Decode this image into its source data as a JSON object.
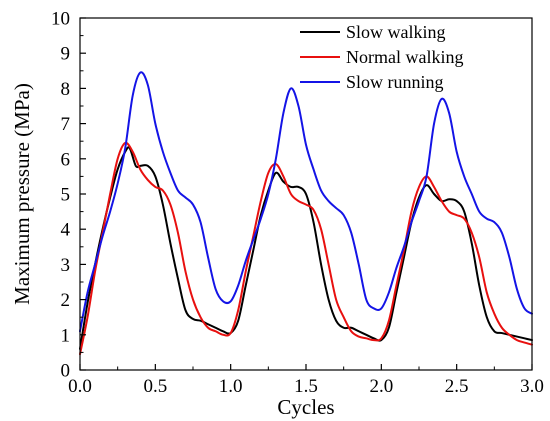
{
  "chart_data": {
    "type": "line",
    "title": "",
    "xlabel": "Cycles",
    "ylabel": "Maximum pressure (MPa)",
    "xlim": [
      0.0,
      3.0
    ],
    "ylim": [
      0,
      10
    ],
    "xticks": [
      0.0,
      0.5,
      1.0,
      1.5,
      2.0,
      2.5,
      3.0
    ],
    "xtick_labels": [
      "0.0",
      "0.5",
      "1.0",
      "1.5",
      "2.0",
      "2.5",
      "3.0"
    ],
    "yticks": [
      0,
      1,
      2,
      3,
      4,
      5,
      6,
      7,
      8,
      9,
      10
    ],
    "ytick_labels": [
      "0",
      "1",
      "2",
      "3",
      "4",
      "5",
      "6",
      "7",
      "8",
      "9",
      "10"
    ],
    "grid": false,
    "legend_position": "top-right",
    "series": [
      {
        "name": "Slow walking",
        "color": "#000000",
        "x": [
          0.0,
          0.05,
          0.1,
          0.15,
          0.2,
          0.25,
          0.3,
          0.33,
          0.37,
          0.4,
          0.45,
          0.5,
          0.55,
          0.6,
          0.65,
          0.7,
          0.75,
          0.8,
          0.85,
          0.9,
          0.95,
          1.0,
          1.05,
          1.1,
          1.15,
          1.2,
          1.25,
          1.3,
          1.35,
          1.4,
          1.45,
          1.5,
          1.55,
          1.6,
          1.65,
          1.7,
          1.75,
          1.8,
          1.85,
          1.9,
          1.95,
          2.0,
          2.05,
          2.1,
          2.15,
          2.2,
          2.25,
          2.3,
          2.35,
          2.4,
          2.45,
          2.5,
          2.55,
          2.6,
          2.65,
          2.7,
          2.75,
          2.8,
          2.85,
          2.9,
          2.95,
          3.0
        ],
        "y": [
          0.6,
          1.9,
          3.0,
          4.0,
          4.9,
          5.7,
          6.2,
          6.3,
          5.8,
          5.8,
          5.8,
          5.5,
          4.7,
          3.6,
          2.6,
          1.7,
          1.45,
          1.4,
          1.3,
          1.2,
          1.1,
          1.05,
          1.4,
          2.4,
          3.4,
          4.4,
          5.1,
          5.6,
          5.35,
          5.2,
          5.2,
          5.0,
          4.2,
          3.0,
          2.0,
          1.4,
          1.2,
          1.2,
          1.1,
          1.0,
          0.9,
          0.85,
          1.2,
          2.2,
          3.2,
          4.2,
          4.9,
          5.25,
          5.0,
          4.8,
          4.85,
          4.8,
          4.5,
          3.6,
          2.4,
          1.5,
          1.1,
          1.05,
          1.0,
          0.95,
          0.9,
          0.85
        ]
      },
      {
        "name": "Normal walking",
        "color": "#e8100f",
        "x": [
          0.0,
          0.05,
          0.1,
          0.15,
          0.2,
          0.25,
          0.3,
          0.35,
          0.4,
          0.45,
          0.5,
          0.55,
          0.6,
          0.65,
          0.7,
          0.75,
          0.8,
          0.85,
          0.9,
          0.95,
          1.0,
          1.05,
          1.1,
          1.15,
          1.2,
          1.25,
          1.3,
          1.35,
          1.4,
          1.45,
          1.5,
          1.55,
          1.6,
          1.65,
          1.7,
          1.75,
          1.8,
          1.85,
          1.9,
          1.95,
          2.0,
          2.05,
          2.1,
          2.15,
          2.2,
          2.25,
          2.3,
          2.35,
          2.4,
          2.45,
          2.5,
          2.55,
          2.6,
          2.65,
          2.7,
          2.75,
          2.8,
          2.85,
          2.9,
          2.95,
          3.0
        ],
        "y": [
          0.45,
          1.5,
          2.8,
          3.9,
          5.0,
          6.0,
          6.45,
          6.2,
          5.7,
          5.4,
          5.2,
          5.1,
          4.7,
          3.9,
          2.8,
          2.0,
          1.5,
          1.2,
          1.1,
          1.0,
          1.05,
          1.7,
          2.8,
          3.8,
          4.8,
          5.6,
          5.85,
          5.5,
          5.0,
          4.8,
          4.7,
          4.55,
          4.0,
          3.0,
          2.0,
          1.5,
          1.1,
          0.95,
          0.9,
          0.85,
          0.9,
          1.4,
          2.4,
          3.4,
          4.5,
          5.2,
          5.5,
          5.2,
          4.8,
          4.5,
          4.4,
          4.3,
          3.9,
          3.2,
          2.2,
          1.6,
          1.2,
          1.0,
          0.85,
          0.78,
          0.72
        ]
      },
      {
        "name": "Slow running",
        "color": "#1414e6",
        "x": [
          0.0,
          0.05,
          0.1,
          0.15,
          0.2,
          0.25,
          0.3,
          0.35,
          0.4,
          0.45,
          0.5,
          0.55,
          0.6,
          0.65,
          0.7,
          0.75,
          0.8,
          0.85,
          0.9,
          0.95,
          1.0,
          1.05,
          1.1,
          1.15,
          1.2,
          1.25,
          1.3,
          1.35,
          1.4,
          1.45,
          1.5,
          1.55,
          1.6,
          1.65,
          1.7,
          1.75,
          1.8,
          1.85,
          1.9,
          1.95,
          2.0,
          2.05,
          2.1,
          2.15,
          2.2,
          2.25,
          2.3,
          2.35,
          2.4,
          2.45,
          2.5,
          2.55,
          2.6,
          2.65,
          2.7,
          2.75,
          2.8,
          2.85,
          2.9,
          2.95,
          3.0
        ],
        "y": [
          1.1,
          2.2,
          3.0,
          3.8,
          4.5,
          5.3,
          6.3,
          7.8,
          8.45,
          8.1,
          7.0,
          6.2,
          5.6,
          5.1,
          4.9,
          4.7,
          4.2,
          3.2,
          2.3,
          1.95,
          1.95,
          2.4,
          3.1,
          3.7,
          4.3,
          5.0,
          6.0,
          7.3,
          8.0,
          7.5,
          6.4,
          5.7,
          5.1,
          4.8,
          4.6,
          4.4,
          3.9,
          3.0,
          2.0,
          1.75,
          1.75,
          2.2,
          2.9,
          3.5,
          4.2,
          4.8,
          5.5,
          7.0,
          7.7,
          7.3,
          6.2,
          5.5,
          5.0,
          4.5,
          4.3,
          4.2,
          3.9,
          3.2,
          2.3,
          1.75,
          1.6
        ]
      }
    ]
  }
}
